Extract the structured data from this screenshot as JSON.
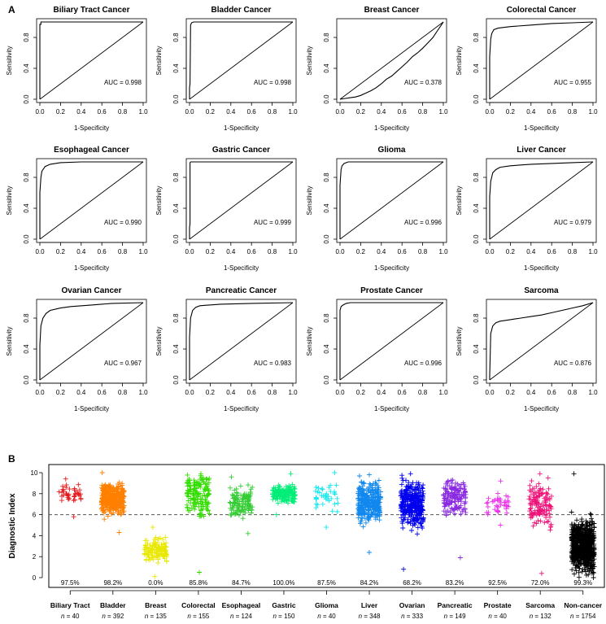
{
  "panel_labels": {
    "a": "A",
    "b": "B"
  },
  "roc": {
    "xlabel": "1-Specificity",
    "ylabel": "Sensitivity",
    "x_ticks": [
      "0.0",
      "0.2",
      "0.4",
      "0.6",
      "0.8",
      "1.0"
    ],
    "y_ticks": [
      "0.0",
      "0.4",
      "0.8"
    ]
  },
  "strip": {
    "ylabel": "Diagnostic Index",
    "y_ticks": [
      "0",
      "2",
      "4",
      "6",
      "8",
      "10"
    ],
    "n_prefix": "n = "
  },
  "chart_data": [
    {
      "type": "line",
      "title": "Biliary Tract Cancer",
      "auc_label": "AUC = 0.998",
      "xlabel": "1-Specificity",
      "ylabel": "Sensitivity",
      "xlim": [
        0,
        1
      ],
      "ylim": [
        0,
        1
      ],
      "roc_points": [
        [
          0,
          0
        ],
        [
          0,
          0.97
        ],
        [
          0.01,
          0.97
        ],
        [
          0.01,
          1.0
        ],
        [
          1,
          1
        ]
      ]
    },
    {
      "type": "line",
      "title": "Bladder Cancer",
      "auc_label": "AUC = 0.998",
      "xlabel": "1-Specificity",
      "ylabel": "Sensitivity",
      "xlim": [
        0,
        1
      ],
      "ylim": [
        0,
        1
      ],
      "roc_points": [
        [
          0,
          0
        ],
        [
          0,
          0.15
        ],
        [
          0.005,
          0.2
        ],
        [
          0.01,
          0.96
        ],
        [
          0.02,
          0.99
        ],
        [
          0.04,
          1.0
        ],
        [
          1,
          1
        ]
      ]
    },
    {
      "type": "line",
      "title": "Breast Cancer",
      "auc_label": "AUC = 0.378",
      "xlabel": "1-Specificity",
      "ylabel": "Sensitivity",
      "xlim": [
        0,
        1
      ],
      "ylim": [
        0,
        1
      ],
      "roc_points": [
        [
          0,
          0
        ],
        [
          0.05,
          0.01
        ],
        [
          0.1,
          0.02
        ],
        [
          0.15,
          0.03
        ],
        [
          0.2,
          0.05
        ],
        [
          0.25,
          0.08
        ],
        [
          0.3,
          0.11
        ],
        [
          0.35,
          0.15
        ],
        [
          0.4,
          0.2
        ],
        [
          0.45,
          0.26
        ],
        [
          0.5,
          0.3
        ],
        [
          0.55,
          0.36
        ],
        [
          0.6,
          0.42
        ],
        [
          0.65,
          0.48
        ],
        [
          0.7,
          0.55
        ],
        [
          0.75,
          0.6
        ],
        [
          0.8,
          0.66
        ],
        [
          0.85,
          0.73
        ],
        [
          0.9,
          0.8
        ],
        [
          0.95,
          0.9
        ],
        [
          0.98,
          0.96
        ],
        [
          1,
          1
        ]
      ]
    },
    {
      "type": "line",
      "title": "Colorectal Cancer",
      "auc_label": "AUC = 0.955",
      "xlabel": "1-Specificity",
      "ylabel": "Sensitivity",
      "xlim": [
        0,
        1
      ],
      "ylim": [
        0,
        1
      ],
      "roc_points": [
        [
          0,
          0
        ],
        [
          0,
          0.55
        ],
        [
          0.01,
          0.78
        ],
        [
          0.02,
          0.85
        ],
        [
          0.04,
          0.9
        ],
        [
          0.08,
          0.92
        ],
        [
          0.2,
          0.94
        ],
        [
          0.4,
          0.96
        ],
        [
          0.6,
          0.98
        ],
        [
          0.8,
          0.99
        ],
        [
          1,
          1
        ]
      ]
    },
    {
      "type": "line",
      "title": "Esophageal Cancer",
      "auc_label": "AUC = 0.990",
      "xlabel": "1-Specificity",
      "ylabel": "Sensitivity",
      "xlim": [
        0,
        1
      ],
      "ylim": [
        0,
        1
      ],
      "roc_points": [
        [
          0,
          0
        ],
        [
          0,
          0.6
        ],
        [
          0.01,
          0.8
        ],
        [
          0.02,
          0.88
        ],
        [
          0.05,
          0.94
        ],
        [
          0.1,
          0.97
        ],
        [
          0.2,
          0.99
        ],
        [
          0.4,
          1.0
        ],
        [
          1,
          1
        ]
      ]
    },
    {
      "type": "line",
      "title": "Gastric Cancer",
      "auc_label": "AUC = 0.999",
      "xlabel": "1-Specificity",
      "ylabel": "Sensitivity",
      "xlim": [
        0,
        1
      ],
      "ylim": [
        0,
        1
      ],
      "roc_points": [
        [
          0,
          0
        ],
        [
          0,
          0.15
        ],
        [
          0.005,
          0.2
        ],
        [
          0.005,
          0.99
        ],
        [
          0.01,
          1.0
        ],
        [
          1,
          1
        ]
      ]
    },
    {
      "type": "line",
      "title": "Glioma",
      "auc_label": "AUC = 0.996",
      "xlabel": "1-Specificity",
      "ylabel": "Sensitivity",
      "xlim": [
        0,
        1
      ],
      "ylim": [
        0,
        1
      ],
      "roc_points": [
        [
          0,
          0
        ],
        [
          0,
          0.7
        ],
        [
          0.01,
          0.9
        ],
        [
          0.02,
          0.95
        ],
        [
          0.04,
          0.98
        ],
        [
          0.08,
          1.0
        ],
        [
          1,
          1
        ]
      ]
    },
    {
      "type": "line",
      "title": "Liver Cancer",
      "auc_label": "AUC = 0.979",
      "xlabel": "1-Specificity",
      "ylabel": "Sensitivity",
      "xlim": [
        0,
        1
      ],
      "ylim": [
        0,
        1
      ],
      "roc_points": [
        [
          0,
          0
        ],
        [
          0,
          0.55
        ],
        [
          0.01,
          0.75
        ],
        [
          0.03,
          0.86
        ],
        [
          0.06,
          0.9
        ],
        [
          0.1,
          0.93
        ],
        [
          0.2,
          0.95
        ],
        [
          0.4,
          0.97
        ],
        [
          0.6,
          0.98
        ],
        [
          0.8,
          0.99
        ],
        [
          1,
          1
        ]
      ]
    },
    {
      "type": "line",
      "title": "Ovarian Cancer",
      "auc_label": "AUC = 0.967",
      "xlabel": "1-Specificity",
      "ylabel": "Sensitivity",
      "xlim": [
        0,
        1
      ],
      "ylim": [
        0,
        1
      ],
      "roc_points": [
        [
          0,
          0
        ],
        [
          0,
          0.45
        ],
        [
          0.01,
          0.7
        ],
        [
          0.03,
          0.8
        ],
        [
          0.06,
          0.86
        ],
        [
          0.1,
          0.9
        ],
        [
          0.2,
          0.93
        ],
        [
          0.3,
          0.95
        ],
        [
          0.5,
          0.97
        ],
        [
          0.7,
          0.99
        ],
        [
          1,
          1
        ]
      ]
    },
    {
      "type": "line",
      "title": "Pancreatic Cancer",
      "auc_label": "AUC = 0.983",
      "xlabel": "1-Specificity",
      "ylabel": "Sensitivity",
      "xlim": [
        0,
        1
      ],
      "ylim": [
        0,
        1
      ],
      "roc_points": [
        [
          0,
          0
        ],
        [
          0,
          0.55
        ],
        [
          0.01,
          0.8
        ],
        [
          0.03,
          0.9
        ],
        [
          0.06,
          0.94
        ],
        [
          0.1,
          0.96
        ],
        [
          0.3,
          0.98
        ],
        [
          0.6,
          0.99
        ],
        [
          1,
          1
        ]
      ]
    },
    {
      "type": "line",
      "title": "Prostate Cancer",
      "auc_label": "AUC = 0.996",
      "xlabel": "1-Specificity",
      "ylabel": "Sensitivity",
      "xlim": [
        0,
        1
      ],
      "ylim": [
        0,
        1
      ],
      "roc_points": [
        [
          0,
          0
        ],
        [
          0,
          0.9
        ],
        [
          0.01,
          0.95
        ],
        [
          0.03,
          0.97
        ],
        [
          0.06,
          0.99
        ],
        [
          0.1,
          1.0
        ],
        [
          1,
          1
        ]
      ]
    },
    {
      "type": "line",
      "title": "Sarcoma",
      "auc_label": "AUC = 0.876",
      "xlabel": "1-Specificity",
      "ylabel": "Sensitivity",
      "xlim": [
        0,
        1
      ],
      "ylim": [
        0,
        1
      ],
      "roc_points": [
        [
          0,
          0
        ],
        [
          0,
          0.05
        ],
        [
          0.005,
          0.3
        ],
        [
          0.01,
          0.6
        ],
        [
          0.03,
          0.7
        ],
        [
          0.06,
          0.74
        ],
        [
          0.1,
          0.76
        ],
        [
          0.2,
          0.78
        ],
        [
          0.3,
          0.8
        ],
        [
          0.4,
          0.82
        ],
        [
          0.5,
          0.84
        ],
        [
          0.6,
          0.87
        ],
        [
          0.7,
          0.9
        ],
        [
          0.8,
          0.93
        ],
        [
          0.9,
          0.96
        ],
        [
          1,
          1
        ]
      ]
    },
    {
      "type": "scatter",
      "xlabel": "",
      "ylabel": "Diagnostic Index",
      "ylim": [
        0,
        10
      ],
      "threshold": 6,
      "categories": [
        "Biliary Tract",
        "Bladder",
        "Breast",
        "Colorectal",
        "Esophageal",
        "Gastric",
        "Glioma",
        "Liver",
        "Ovarian",
        "Pancreatic",
        "Prostate",
        "Sarcoma",
        "Non-cancer"
      ],
      "n": [
        40,
        392,
        135,
        155,
        124,
        150,
        40,
        348,
        333,
        149,
        40,
        132,
        1754
      ],
      "percent_labels": [
        "97.5%",
        "98.2%",
        "0.0%",
        "85.8%",
        "84.7%",
        "100.0%",
        "87.5%",
        "84.2%",
        "68.2%",
        "83.2%",
        "92.5%",
        "72.0%",
        "99.3%"
      ],
      "colors": [
        "#e41a1c",
        "#ff7f00",
        "#e8e800",
        "#33dd00",
        "#33cc33",
        "#00ee77",
        "#11e8ee",
        "#1188ee",
        "#0000ee",
        "#8a2be2",
        "#e832e8",
        "#ee1177",
        "#000000"
      ],
      "value_ranges": [
        [
          5.8,
          9.4
        ],
        [
          4.3,
          10.0
        ],
        [
          0.1,
          4.8
        ],
        [
          0.5,
          9.9
        ],
        [
          4.2,
          9.6
        ],
        [
          6.0,
          9.9
        ],
        [
          4.8,
          10.0
        ],
        [
          2.4,
          9.8
        ],
        [
          0.8,
          9.9
        ],
        [
          1.9,
          9.3
        ],
        [
          5.0,
          9.2
        ],
        [
          0.4,
          9.9
        ],
        [
          0.0,
          9.9
        ]
      ],
      "value_medians": [
        8.0,
        7.5,
        2.5,
        8.0,
        7.2,
        8.0,
        7.8,
        7.2,
        7.0,
        7.6,
        7.0,
        7.0,
        3.0
      ]
    }
  ]
}
